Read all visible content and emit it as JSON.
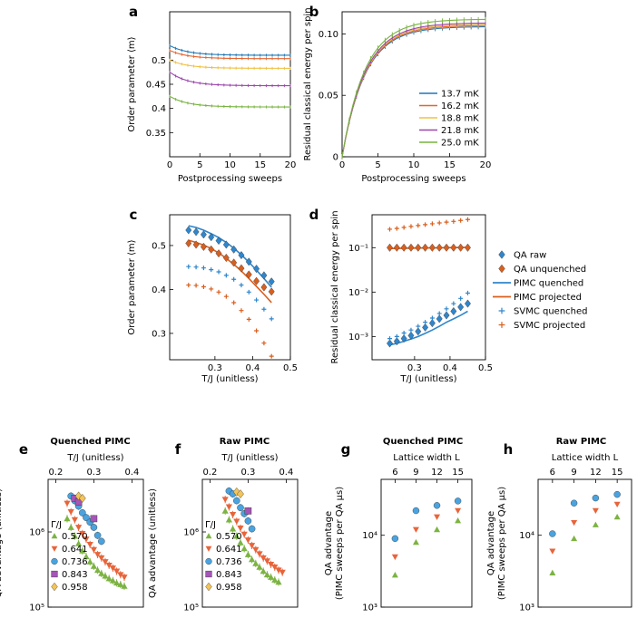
{
  "panel_labels": [
    "a",
    "b",
    "c",
    "d",
    "e",
    "f",
    "g",
    "h"
  ],
  "colors": {
    "t137": "#1f77b4",
    "t162": "#e6642e",
    "t188": "#f0c040",
    "t218": "#9b46ad",
    "t250": "#77b33f",
    "qa": "#2f86cc",
    "pimc": "#d95f1e",
    "c570": "#7cb342",
    "c641": "#e8643a",
    "c736": "#4aa3df",
    "c843": "#a455b5",
    "c958": "#f2c45a"
  },
  "chart_data": [
    {
      "id": "a",
      "type": "line",
      "xlabel": "Postprocessing sweeps",
      "ylabel": "Order parameter ⟨m⟩",
      "xlim": [
        0,
        20
      ],
      "ylim": [
        0.3,
        0.6
      ],
      "xticks": [
        "0",
        "5",
        "10",
        "15",
        "20"
      ],
      "yticks": [
        "0.35",
        "0.4",
        "0.45",
        "0.5"
      ],
      "series": [
        {
          "color": "t137",
          "start": 0.53,
          "end": 0.51
        },
        {
          "color": "t162",
          "start": 0.52,
          "end": 0.503
        },
        {
          "color": "t188",
          "start": 0.5,
          "end": 0.483
        },
        {
          "color": "t218",
          "start": 0.475,
          "end": 0.447
        },
        {
          "color": "t250",
          "start": 0.425,
          "end": 0.403
        }
      ]
    },
    {
      "id": "b",
      "type": "line",
      "xlabel": "Postprocessing sweeps",
      "ylabel": "Residual classical energy per spin",
      "xlim": [
        0,
        20
      ],
      "ylim": [
        0,
        0.118
      ],
      "xticks": [
        "0",
        "5",
        "10",
        "15",
        "20"
      ],
      "yticks": [
        "0",
        "0.05",
        "0.10"
      ],
      "legend": [
        "13.7 mK",
        "16.2 mK",
        "18.8 mK",
        "21.8 mK",
        "25.0 mK"
      ],
      "legend_colors": [
        "t137",
        "t162",
        "t188",
        "t218",
        "t250"
      ],
      "series": [
        {
          "color": "t137",
          "end": 0.106
        },
        {
          "color": "t162",
          "end": 0.107
        },
        {
          "color": "t188",
          "end": 0.108
        },
        {
          "color": "t218",
          "end": 0.109
        },
        {
          "color": "t250",
          "end": 0.112
        }
      ]
    },
    {
      "id": "c",
      "type": "scatter",
      "xlabel": "T/J (unitless)",
      "ylabel": "Order parameter ⟨m⟩",
      "xlim": [
        0.18,
        0.5
      ],
      "ylim": [
        0.24,
        0.57
      ],
      "xticks": [
        "0.3",
        "0.4",
        "0.5"
      ],
      "yticks": [
        "0.3",
        "0.4",
        "0.5"
      ],
      "x": [
        0.23,
        0.25,
        0.27,
        0.29,
        0.31,
        0.33,
        0.35,
        0.37,
        0.39,
        0.41,
        0.43,
        0.45
      ],
      "qa_raw": [
        0.535,
        0.531,
        0.525,
        0.519,
        0.511,
        0.502,
        0.491,
        0.478,
        0.463,
        0.447,
        0.432,
        0.418
      ],
      "qa_unquenched": [
        0.505,
        0.502,
        0.497,
        0.491,
        0.482,
        0.472,
        0.461,
        0.448,
        0.434,
        0.419,
        0.405,
        0.395
      ],
      "pimc_quenched": [
        0.545,
        0.541,
        0.535,
        0.527,
        0.518,
        0.507,
        0.494,
        0.479,
        0.462,
        0.444,
        0.425,
        0.405
      ],
      "pimc_projected": [
        0.512,
        0.507,
        0.501,
        0.493,
        0.483,
        0.471,
        0.457,
        0.442,
        0.425,
        0.407,
        0.389,
        0.37
      ],
      "svmc_quenched": [
        0.452,
        0.451,
        0.449,
        0.445,
        0.44,
        0.432,
        0.423,
        0.41,
        0.394,
        0.376,
        0.355,
        0.333
      ],
      "svmc_projected": [
        0.41,
        0.409,
        0.406,
        0.401,
        0.394,
        0.384,
        0.37,
        0.352,
        0.332,
        0.306,
        0.278,
        0.248
      ]
    },
    {
      "id": "d",
      "type": "scatter",
      "xlabel": "T/J (unitless)",
      "ylabel": "Residual classical energy per spin",
      "xlim": [
        0.18,
        0.5
      ],
      "ylim": [
        0.0003,
        0.55
      ],
      "yscale": "log",
      "xticks": [
        "0.3",
        "0.4",
        "0.5"
      ],
      "yticks": [
        "10⁻³",
        "10⁻²",
        "10⁻¹"
      ],
      "x": [
        0.23,
        0.25,
        0.27,
        0.29,
        0.31,
        0.33,
        0.35,
        0.37,
        0.39,
        0.41,
        0.43,
        0.45
      ],
      "qa_raw": [
        0.0007,
        0.00078,
        0.0009,
        0.00105,
        0.0013,
        0.0016,
        0.002,
        0.0025,
        0.003,
        0.0037,
        0.0046,
        0.0055
      ],
      "qa_unquenched": [
        0.1,
        0.1,
        0.1,
        0.1,
        0.1,
        0.1,
        0.1,
        0.1,
        0.1,
        0.1,
        0.1,
        0.1
      ],
      "pimc_quenched": [
        0.00065,
        0.0007,
        0.00078,
        0.00088,
        0.001,
        0.00118,
        0.0014,
        0.0017,
        0.0021,
        0.0025,
        0.003,
        0.0037
      ],
      "pimc_projected": [
        0.096,
        0.096,
        0.097,
        0.097,
        0.098,
        0.098,
        0.099,
        0.099,
        0.1,
        0.1,
        0.101,
        0.101
      ],
      "svmc_quenched": [
        0.0009,
        0.001,
        0.0012,
        0.0014,
        0.0017,
        0.0021,
        0.0026,
        0.0033,
        0.0042,
        0.0055,
        0.0072,
        0.0095
      ],
      "svmc_projected": [
        0.26,
        0.27,
        0.285,
        0.3,
        0.315,
        0.33,
        0.345,
        0.36,
        0.375,
        0.39,
        0.41,
        0.43
      ],
      "legend": [
        "QA raw",
        "QA unquenched",
        "PIMC quenched",
        "PIMC projected",
        "SVMC quenched",
        "SVMC projected"
      ]
    },
    {
      "id": "e",
      "type": "scatter",
      "title": "Quenched PIMC",
      "xlabel": "T/J (unitless)",
      "ylabel": "QA advantage (unitless)",
      "xlim": [
        0.18,
        0.43
      ],
      "ylim": [
        100000,
        5000000
      ],
      "yscale": "log",
      "xticks": [
        "0.2",
        "0.3",
        "0.4"
      ],
      "yticks": [
        "10⁵",
        "10⁶"
      ],
      "legend_title": "Γ/J",
      "series": [
        {
          "name": "0.570",
          "color": "c570",
          "marker": "tri-up",
          "x": [
            0.23,
            0.24,
            0.25,
            0.26,
            0.27,
            0.28,
            0.29,
            0.3,
            0.31,
            0.32,
            0.33,
            0.34,
            0.35,
            0.36,
            0.37,
            0.38
          ],
          "y": [
            1500000,
            1150000,
            880000,
            700000,
            560000,
            470000,
            400000,
            350000,
            310000,
            280000,
            260000,
            240000,
            225000,
            210000,
            200000,
            190000
          ]
        },
        {
          "name": "0.641",
          "color": "c641",
          "marker": "tri-down",
          "x": [
            0.23,
            0.24,
            0.25,
            0.26,
            0.27,
            0.28,
            0.29,
            0.3,
            0.31,
            0.32,
            0.33,
            0.34,
            0.35,
            0.36,
            0.37,
            0.38
          ],
          "y": [
            2400000,
            1850000,
            1450000,
            1150000,
            950000,
            800000,
            680000,
            580000,
            500000,
            450000,
            400000,
            360000,
            330000,
            300000,
            270000,
            250000
          ]
        },
        {
          "name": "0.736",
          "color": "c736",
          "marker": "circle",
          "x": [
            0.24,
            0.25,
            0.26,
            0.27,
            0.28,
            0.29,
            0.3,
            0.31,
            0.32
          ],
          "y": [
            3000000,
            2600000,
            2200000,
            1800000,
            1550000,
            1350000,
            1150000,
            900000,
            750000
          ]
        },
        {
          "name": "0.843",
          "color": "c843",
          "marker": "square",
          "x": [
            0.25,
            0.26,
            0.3
          ],
          "y": [
            2800000,
            2500000,
            1500000
          ]
        },
        {
          "name": "0.958",
          "color": "c958",
          "marker": "diamond",
          "x": [
            0.26,
            0.27
          ],
          "y": [
            3000000,
            2800000
          ]
        }
      ]
    },
    {
      "id": "f",
      "type": "scatter",
      "title": "Raw PIMC",
      "xlabel": "T/J (unitless)",
      "ylabel": "QA advantage (unitless)",
      "xlim": [
        0.18,
        0.43
      ],
      "ylim": [
        100000,
        5000000
      ],
      "yscale": "log",
      "xticks": [
        "0.2",
        "0.3",
        "0.4"
      ],
      "yticks": [
        "10⁵",
        "10⁶"
      ],
      "legend_title": "Γ/J",
      "series": [
        {
          "name": "0.570",
          "color": "c570",
          "marker": "tri-up",
          "x": [
            0.24,
            0.25,
            0.26,
            0.27,
            0.28,
            0.29,
            0.3,
            0.31,
            0.32,
            0.33,
            0.34,
            0.35,
            0.36,
            0.37,
            0.38
          ],
          "y": [
            1900000,
            1450000,
            1100000,
            880000,
            720000,
            600000,
            500000,
            430000,
            380000,
            340000,
            300000,
            270000,
            250000,
            230000,
            215000
          ]
        },
        {
          "name": "0.641",
          "color": "c641",
          "marker": "tri-down",
          "x": [
            0.24,
            0.25,
            0.26,
            0.27,
            0.28,
            0.29,
            0.3,
            0.31,
            0.32,
            0.33,
            0.34,
            0.35,
            0.36,
            0.37,
            0.38,
            0.39
          ],
          "y": [
            2700000,
            2150000,
            1700000,
            1380000,
            1120000,
            930000,
            780000,
            660000,
            580000,
            510000,
            450000,
            410000,
            370000,
            340000,
            310000,
            290000
          ]
        },
        {
          "name": "0.736",
          "color": "c736",
          "marker": "circle",
          "x": [
            0.25,
            0.26,
            0.27,
            0.28,
            0.29,
            0.3,
            0.31
          ],
          "y": [
            3500000,
            3200000,
            2600000,
            2100000,
            1750000,
            1400000,
            1100000
          ]
        },
        {
          "name": "0.843",
          "color": "c843",
          "marker": "square",
          "x": [
            0.3
          ],
          "y": [
            1900000
          ]
        },
        {
          "name": "0.958",
          "color": "c958",
          "marker": "diamond",
          "x": [
            0.27,
            0.28
          ],
          "y": [
            3400000,
            3200000
          ]
        }
      ]
    },
    {
      "id": "g",
      "type": "scatter",
      "title": "Quenched PIMC",
      "xlabel": "Lattice width L",
      "ylabel": "QA advantage (PIMC sweeps per QA μs)",
      "xlim": [
        4,
        17
      ],
      "ylim": [
        1000,
        60000
      ],
      "yscale": "log",
      "xticks": [
        "6",
        "9",
        "12",
        "15"
      ],
      "yticks": [
        "10³",
        "10⁴"
      ],
      "series": [
        {
          "color": "c736",
          "marker": "circle",
          "x": [
            6,
            9,
            12,
            15
          ],
          "y": [
            9000,
            22000,
            26000,
            30000
          ]
        },
        {
          "color": "c641",
          "marker": "tri-down",
          "x": [
            6,
            9,
            12,
            15
          ],
          "y": [
            5000,
            12000,
            18000,
            22000
          ]
        },
        {
          "color": "c570",
          "marker": "tri-up",
          "x": [
            6,
            9,
            12,
            15
          ],
          "y": [
            2800,
            8000,
            12000,
            16000
          ]
        }
      ]
    },
    {
      "id": "h",
      "type": "scatter",
      "title": "Raw PIMC",
      "xlabel": "Lattice width L",
      "ylabel": "QA advantage (PIMC sweeps per QA μs)",
      "xlim": [
        4,
        17
      ],
      "ylim": [
        1000,
        60000
      ],
      "yscale": "log",
      "xticks": [
        "6",
        "9",
        "12",
        "15"
      ],
      "yticks": [
        "10³",
        "10⁴"
      ],
      "series": [
        {
          "color": "c736",
          "marker": "circle",
          "x": [
            6,
            9,
            12,
            15
          ],
          "y": [
            10500,
            28000,
            33000,
            37000
          ]
        },
        {
          "color": "c641",
          "marker": "tri-down",
          "x": [
            6,
            9,
            12,
            15
          ],
          "y": [
            6000,
            15000,
            22000,
            27000
          ]
        },
        {
          "color": "c570",
          "marker": "tri-up",
          "x": [
            6,
            9,
            12,
            15
          ],
          "y": [
            3000,
            9000,
            14000,
            18000
          ]
        }
      ]
    }
  ]
}
